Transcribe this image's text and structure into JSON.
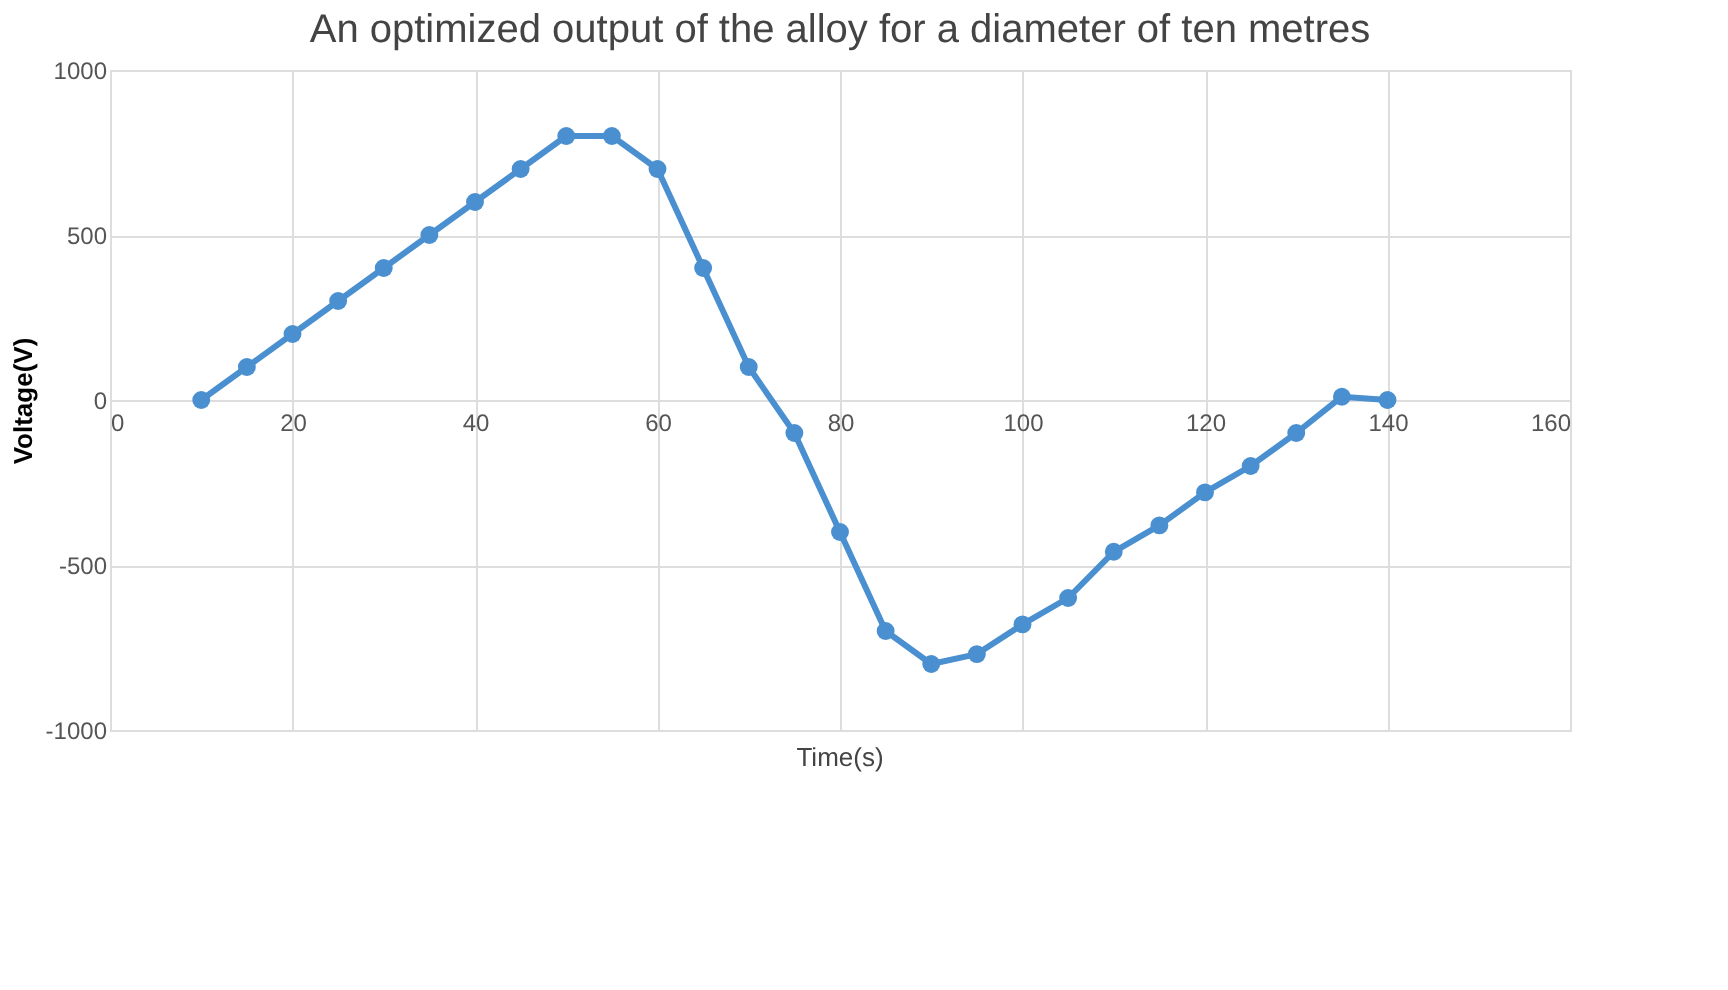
{
  "chart_data": {
    "type": "line",
    "title": "An optimized output of the alloy for a diameter of ten metres",
    "xlabel": "Time(s)",
    "ylabel": "Voltage(V)",
    "x": [
      10,
      15,
      20,
      25,
      30,
      35,
      40,
      45,
      50,
      55,
      60,
      65,
      70,
      75,
      80,
      85,
      90,
      95,
      100,
      105,
      110,
      115,
      120,
      125,
      130,
      135,
      140
    ],
    "series": [
      {
        "color": "#4a8fcf",
        "values": [
          0,
          100,
          200,
          300,
          400,
          500,
          600,
          700,
          800,
          800,
          700,
          400,
          100,
          -100,
          -400,
          -700,
          -800,
          -770,
          -680,
          -600,
          -460,
          -380,
          -280,
          -200,
          -100,
          10,
          0
        ]
      }
    ],
    "xlim": [
      0,
      160
    ],
    "xticks": [
      0,
      20,
      40,
      60,
      80,
      100,
      120,
      140,
      160
    ],
    "ylim": [
      -1000,
      1000
    ],
    "yticks": [
      -1000,
      -500,
      0,
      500,
      1000
    ],
    "grid": true,
    "marker": "circle",
    "line_style": "solid"
  }
}
